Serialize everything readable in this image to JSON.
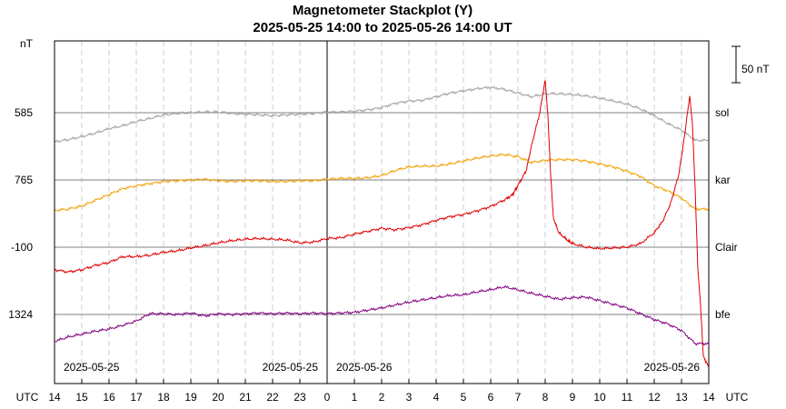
{
  "chart_data": {
    "type": "line",
    "title": "Magnetometer Stackplot (Y)",
    "subtitle": "2025-05-25 14:00 to 2025-05-26 14:00 UT",
    "y_unit_label": "nT",
    "x_axis_label_left": "UTC",
    "x_axis_label_right": "UTC",
    "x_ticks": [
      "14",
      "15",
      "16",
      "17",
      "18",
      "19",
      "20",
      "21",
      "22",
      "23",
      "0",
      "1",
      "2",
      "3",
      "4",
      "5",
      "6",
      "7",
      "8",
      "9",
      "10",
      "11",
      "12",
      "13",
      "14"
    ],
    "date_labels": [
      {
        "text": "2025-05-25",
        "hour": 14
      },
      {
        "text": "2025-05-25",
        "hour": 24
      },
      {
        "text": "2025-05-26",
        "hour": 24
      },
      {
        "text": "2025-05-26",
        "hour": 38
      }
    ],
    "scale_bar_label": "50 nT",
    "scale_bar_nT": 50,
    "x_range_hours": [
      14,
      38
    ],
    "series": [
      {
        "name": "sol",
        "baseline_label": "585",
        "color": "#a0a0a0",
        "points": [
          [
            14,
            -40
          ],
          [
            14.5,
            -37
          ],
          [
            15,
            -33
          ],
          [
            15.5,
            -28
          ],
          [
            16,
            -22
          ],
          [
            16.5,
            -18
          ],
          [
            17,
            -12
          ],
          [
            17.5,
            -8
          ],
          [
            18,
            -3
          ],
          [
            18.5,
            -1
          ],
          [
            19,
            0
          ],
          [
            19.5,
            1
          ],
          [
            20,
            1
          ],
          [
            20.5,
            -1
          ],
          [
            21,
            -2
          ],
          [
            21.5,
            -3
          ],
          [
            22,
            -4
          ],
          [
            22.5,
            -3
          ],
          [
            23,
            -2
          ],
          [
            23.5,
            -1
          ],
          [
            24,
            1
          ],
          [
            24.5,
            1
          ],
          [
            25,
            2
          ],
          [
            25.5,
            4
          ],
          [
            26,
            7
          ],
          [
            26.5,
            13
          ],
          [
            27,
            16
          ],
          [
            27.5,
            17
          ],
          [
            28,
            22
          ],
          [
            28.5,
            27
          ],
          [
            29,
            30
          ],
          [
            29.5,
            33
          ],
          [
            30,
            35
          ],
          [
            30.5,
            32
          ],
          [
            31,
            27
          ],
          [
            31.5,
            22
          ],
          [
            32,
            26
          ],
          [
            32.5,
            26
          ],
          [
            33,
            25
          ],
          [
            33.5,
            23
          ],
          [
            34,
            20
          ],
          [
            34.5,
            16
          ],
          [
            35,
            12
          ],
          [
            35.5,
            5
          ],
          [
            36,
            -4
          ],
          [
            36.5,
            -15
          ],
          [
            37,
            -24
          ],
          [
            37.5,
            -38
          ],
          [
            38,
            -38
          ]
        ]
      },
      {
        "name": "kar",
        "baseline_label": "765",
        "color": "#f0a000",
        "points": [
          [
            14,
            -42
          ],
          [
            14.5,
            -40
          ],
          [
            15,
            -36
          ],
          [
            15.5,
            -28
          ],
          [
            16,
            -20
          ],
          [
            16.5,
            -12
          ],
          [
            17,
            -8
          ],
          [
            17.5,
            -5
          ],
          [
            18,
            -2
          ],
          [
            18.5,
            -1
          ],
          [
            19,
            0
          ],
          [
            19.5,
            1
          ],
          [
            20,
            -1
          ],
          [
            20.5,
            -2
          ],
          [
            21,
            -1
          ],
          [
            21.5,
            -1
          ],
          [
            22,
            -2
          ],
          [
            22.5,
            -2
          ],
          [
            23,
            -1
          ],
          [
            23.5,
            -1
          ],
          [
            24,
            1
          ],
          [
            24.5,
            2
          ],
          [
            25,
            2
          ],
          [
            25.5,
            3
          ],
          [
            26,
            6
          ],
          [
            26.5,
            13
          ],
          [
            27,
            18
          ],
          [
            27.5,
            19
          ],
          [
            28,
            19
          ],
          [
            28.5,
            22
          ],
          [
            29,
            26
          ],
          [
            29.5,
            30
          ],
          [
            30,
            33
          ],
          [
            30.5,
            35
          ],
          [
            31,
            32
          ],
          [
            31.5,
            24
          ],
          [
            32,
            27
          ],
          [
            32.5,
            28
          ],
          [
            33,
            28
          ],
          [
            33.5,
            26
          ],
          [
            34,
            22
          ],
          [
            34.5,
            18
          ],
          [
            35,
            12
          ],
          [
            35.5,
            5
          ],
          [
            36,
            -8
          ],
          [
            36.5,
            -15
          ],
          [
            37,
            -25
          ],
          [
            37.5,
            -40
          ],
          [
            38,
            -40
          ]
        ]
      },
      {
        "name": "Clair",
        "baseline_label": "-100",
        "color": "#e00000",
        "points": [
          [
            14,
            -31
          ],
          [
            14.5,
            -34
          ],
          [
            15,
            -31
          ],
          [
            15.5,
            -25
          ],
          [
            16,
            -21
          ],
          [
            16.5,
            -13
          ],
          [
            17,
            -13
          ],
          [
            17.5,
            -11
          ],
          [
            18,
            -7
          ],
          [
            18.5,
            -5
          ],
          [
            19,
            -1
          ],
          [
            19.5,
            2
          ],
          [
            20,
            6
          ],
          [
            20.5,
            9
          ],
          [
            21,
            11
          ],
          [
            21.5,
            12
          ],
          [
            22,
            11
          ],
          [
            22.5,
            10
          ],
          [
            23,
            6
          ],
          [
            23.5,
            7
          ],
          [
            24,
            12
          ],
          [
            24.5,
            13
          ],
          [
            25,
            18
          ],
          [
            25.5,
            22
          ],
          [
            26,
            26
          ],
          [
            26.5,
            24
          ],
          [
            27,
            27
          ],
          [
            27.5,
            31
          ],
          [
            28,
            37
          ],
          [
            28.5,
            42
          ],
          [
            29,
            45
          ],
          [
            29.5,
            50
          ],
          [
            30,
            56
          ],
          [
            30.5,
            65
          ],
          [
            30.8,
            72
          ],
          [
            31,
            85
          ],
          [
            31.3,
            105
          ],
          [
            31.5,
            140
          ],
          [
            31.8,
            185
          ],
          [
            32,
            230
          ],
          [
            32.1,
            180
          ],
          [
            32.2,
            100
          ],
          [
            32.3,
            40
          ],
          [
            32.5,
            20
          ],
          [
            32.8,
            10
          ],
          [
            33,
            5
          ],
          [
            33.5,
            0
          ],
          [
            34,
            -2
          ],
          [
            34.5,
            -1
          ],
          [
            35,
            0
          ],
          [
            35.5,
            5
          ],
          [
            36,
            20
          ],
          [
            36.3,
            35
          ],
          [
            36.6,
            60
          ],
          [
            36.9,
            100
          ],
          [
            37.1,
            150
          ],
          [
            37.3,
            208
          ],
          [
            37.4,
            170
          ],
          [
            37.5,
            80
          ],
          [
            37.6,
            -30
          ],
          [
            37.7,
            -80
          ],
          [
            37.8,
            -150
          ],
          [
            38,
            -165
          ]
        ]
      },
      {
        "name": "bfe",
        "baseline_label": "1324",
        "color": "#800080",
        "points": [
          [
            14,
            -37
          ],
          [
            14.5,
            -31
          ],
          [
            15,
            -27
          ],
          [
            15.5,
            -23
          ],
          [
            16,
            -20
          ],
          [
            16.5,
            -15
          ],
          [
            17,
            -9
          ],
          [
            17.5,
            1
          ],
          [
            18,
            1
          ],
          [
            18.5,
            0
          ],
          [
            19,
            2
          ],
          [
            19.5,
            -2
          ],
          [
            20,
            1
          ],
          [
            20.5,
            0
          ],
          [
            21,
            1
          ],
          [
            21.5,
            2
          ],
          [
            22,
            1
          ],
          [
            22.5,
            2
          ],
          [
            23,
            1
          ],
          [
            23.5,
            2
          ],
          [
            24,
            1
          ],
          [
            24.5,
            2
          ],
          [
            25,
            3
          ],
          [
            25.5,
            6
          ],
          [
            26,
            9
          ],
          [
            26.5,
            13
          ],
          [
            27,
            17
          ],
          [
            27.5,
            20
          ],
          [
            28,
            23
          ],
          [
            28.5,
            26
          ],
          [
            29,
            27
          ],
          [
            29.5,
            31
          ],
          [
            30,
            34
          ],
          [
            30.5,
            38
          ],
          [
            31,
            34
          ],
          [
            31.5,
            29
          ],
          [
            32,
            25
          ],
          [
            32.5,
            21
          ],
          [
            33,
            23
          ],
          [
            33.5,
            24
          ],
          [
            34,
            19
          ],
          [
            34.5,
            14
          ],
          [
            35,
            9
          ],
          [
            35.5,
            1
          ],
          [
            36,
            -7
          ],
          [
            36.5,
            -13
          ],
          [
            37,
            -22
          ],
          [
            37.5,
            -40
          ],
          [
            38,
            -40
          ]
        ]
      }
    ]
  }
}
